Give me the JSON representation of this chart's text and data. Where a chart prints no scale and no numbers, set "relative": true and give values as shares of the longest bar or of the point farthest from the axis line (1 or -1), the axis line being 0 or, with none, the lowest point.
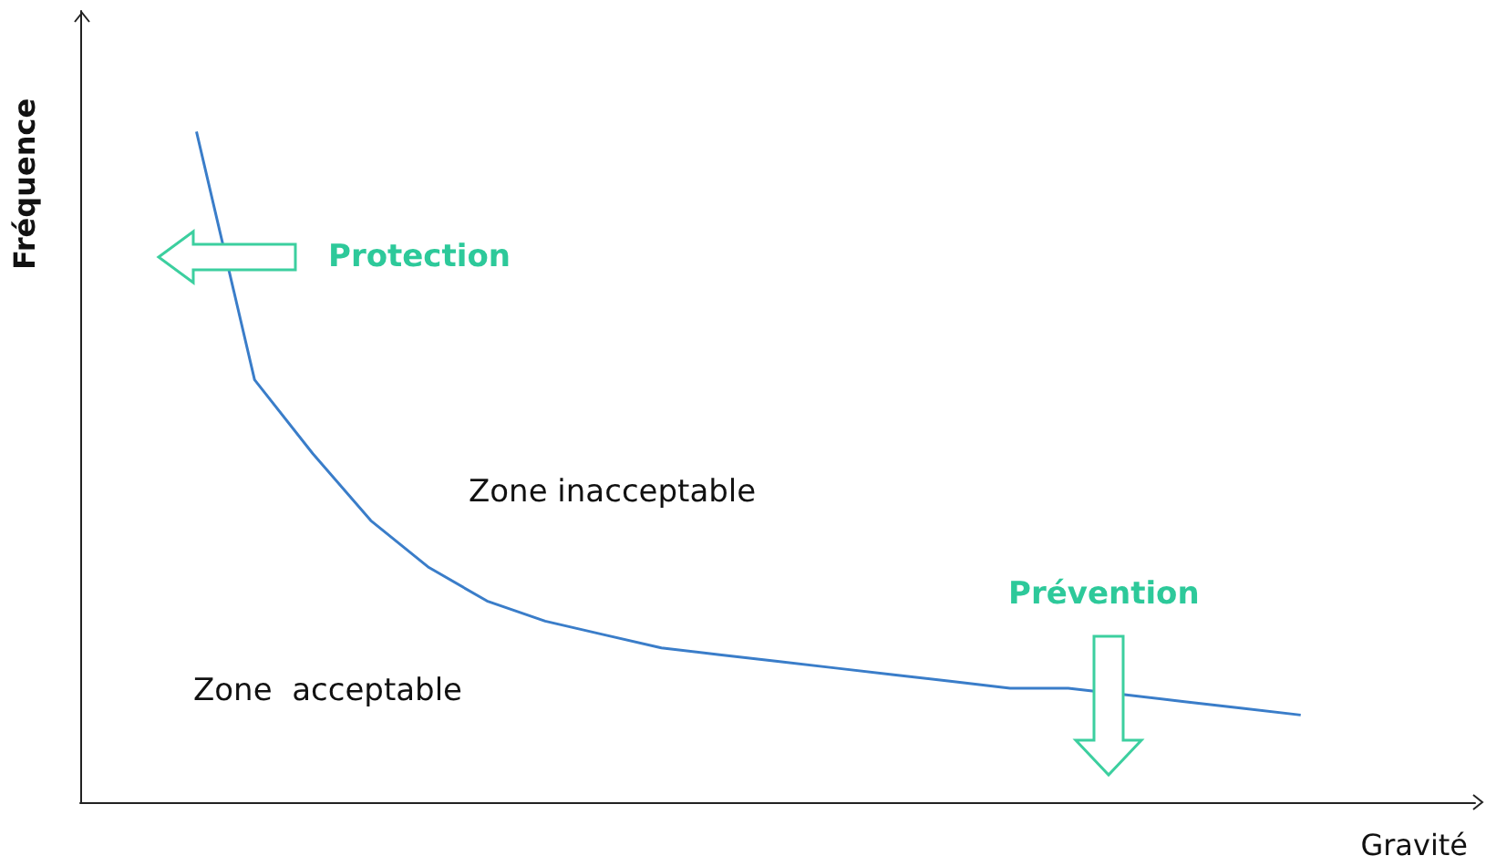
{
  "chart_data": {
    "type": "line",
    "xlabel": "Gravité",
    "ylabel": "Fréquence",
    "relative": true,
    "marker": "none",
    "color": "#3a7dc9",
    "categories": [
      null,
      null,
      null,
      null,
      null,
      null,
      null,
      null,
      null,
      null,
      null,
      null,
      null,
      null,
      null,
      null,
      null,
      null,
      null,
      null,
      null,
      null,
      null,
      null,
      null
    ],
    "values": [
      null,
      null,
      1.0,
      0.63,
      0.52,
      0.42,
      0.35,
      0.3,
      0.27,
      0.25,
      0.23,
      0.22,
      0.21,
      0.2,
      0.19,
      0.18,
      0.17,
      0.17,
      0.16,
      0.15,
      0.14,
      0.13,
      null,
      null,
      null
    ],
    "annotations": [
      "Protection",
      "Zone inacceptable",
      "Prévention",
      "Zone  acceptable"
    ]
  }
}
